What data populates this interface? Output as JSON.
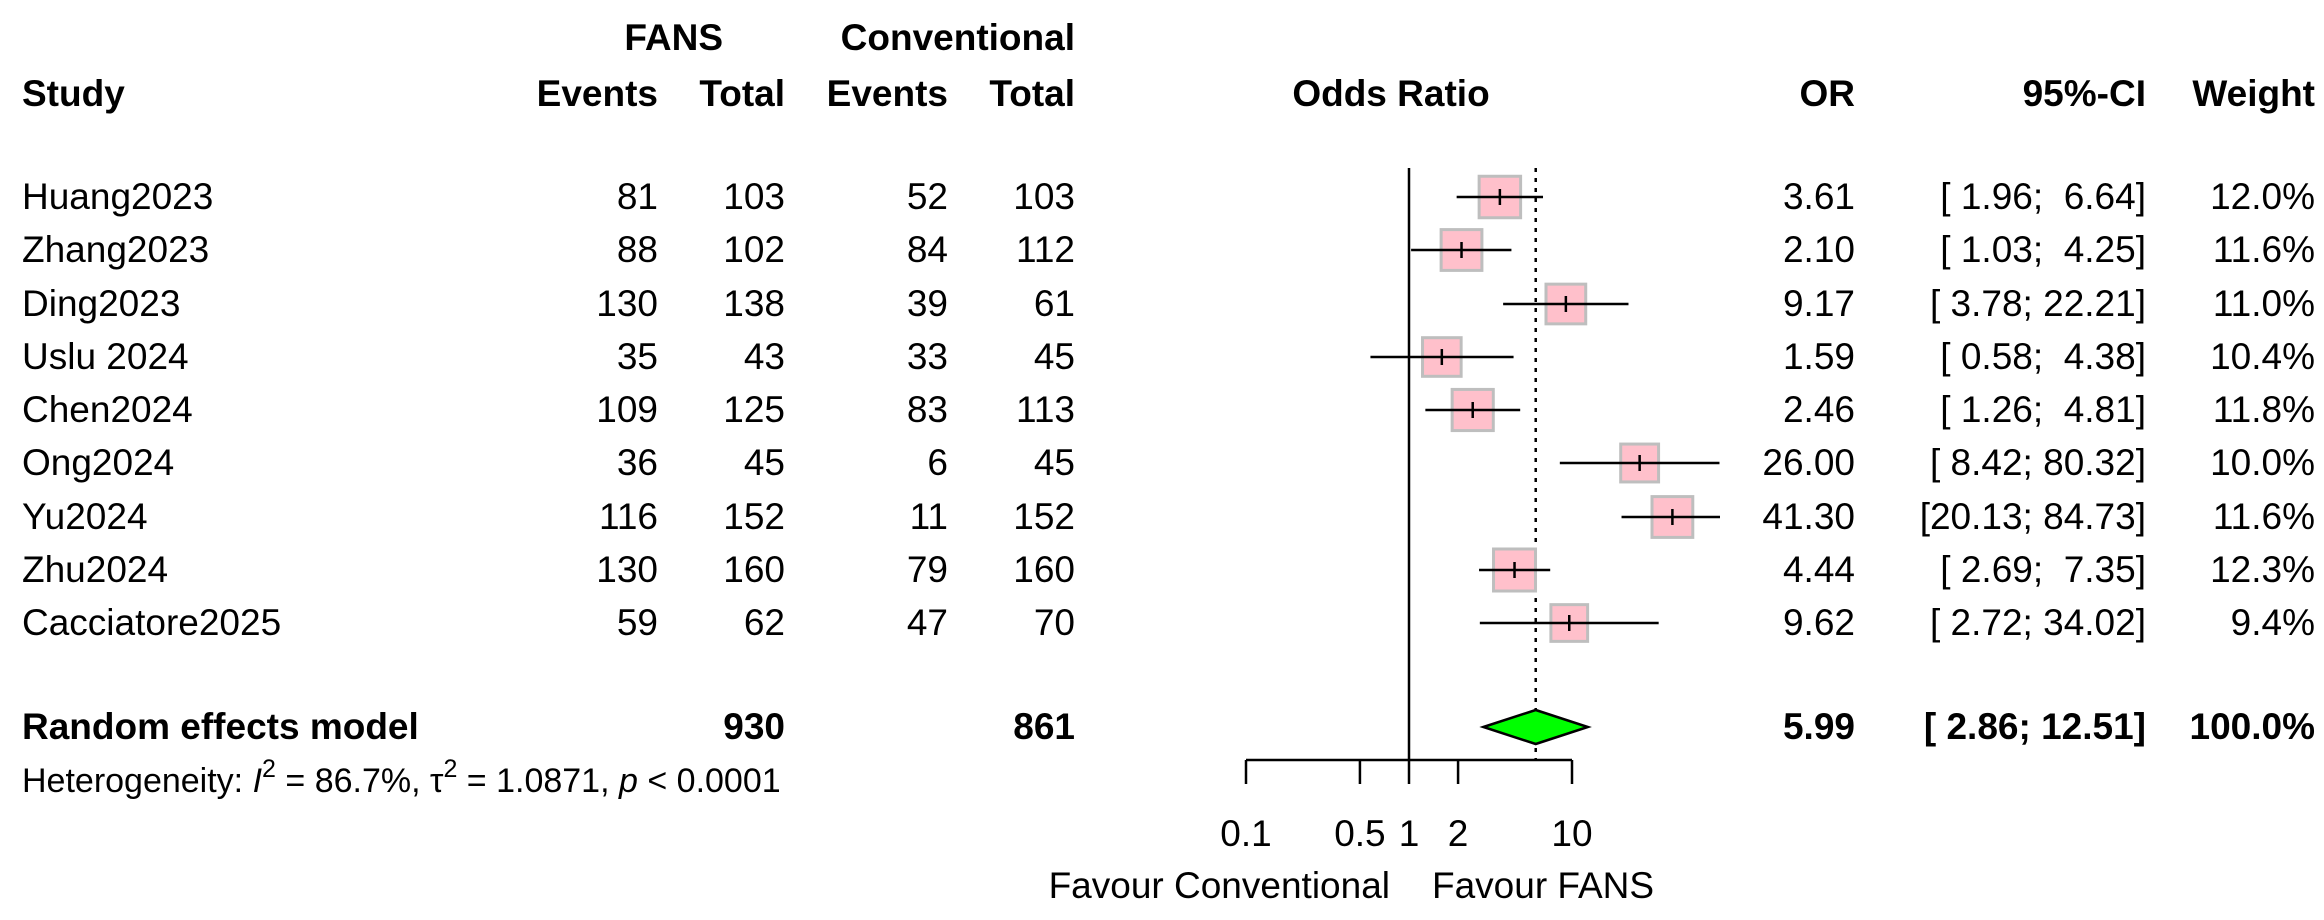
{
  "header": {
    "group_fans": "FANS",
    "group_conventional": "Conventional",
    "col_study": "Study",
    "col_events_fans": "Events",
    "col_total_fans": "Total",
    "col_events_conv": "Events",
    "col_total_conv": "Total",
    "col_odds_ratio": "Odds Ratio",
    "col_or": "OR",
    "col_ci": "95%-CI",
    "col_weight": "Weight"
  },
  "studies": [
    {
      "study": "Huang2023",
      "events_fans": "81",
      "total_fans": "103",
      "events_conv": "52",
      "total_conv": "103",
      "or_text": "3.61",
      "ci_text": "[ 1.96;  6.64]",
      "weight_text": "12.0%"
    },
    {
      "study": "Zhang2023",
      "events_fans": "88",
      "total_fans": "102",
      "events_conv": "84",
      "total_conv": "112",
      "or_text": "2.10",
      "ci_text": "[ 1.03;  4.25]",
      "weight_text": "11.6%"
    },
    {
      "study": "Ding2023",
      "events_fans": "130",
      "total_fans": "138",
      "events_conv": "39",
      "total_conv": "61",
      "or_text": "9.17",
      "ci_text": "[ 3.78; 22.21]",
      "weight_text": "11.0%"
    },
    {
      "study": "Uslu 2024",
      "events_fans": "35",
      "total_fans": "43",
      "events_conv": "33",
      "total_conv": "45",
      "or_text": "1.59",
      "ci_text": "[ 0.58;  4.38]",
      "weight_text": "10.4%"
    },
    {
      "study": "Chen2024",
      "events_fans": "109",
      "total_fans": "125",
      "events_conv": "83",
      "total_conv": "113",
      "or_text": "2.46",
      "ci_text": "[ 1.26;  4.81]",
      "weight_text": "11.8%"
    },
    {
      "study": "Ong2024",
      "events_fans": "36",
      "total_fans": "45",
      "events_conv": "6",
      "total_conv": "45",
      "or_text": "26.00",
      "ci_text": "[ 8.42; 80.32]",
      "weight_text": "10.0%"
    },
    {
      "study": "Yu2024",
      "events_fans": "116",
      "total_fans": "152",
      "events_conv": "11",
      "total_conv": "152",
      "or_text": "41.30",
      "ci_text": "[20.13; 84.73]",
      "weight_text": "11.6%"
    },
    {
      "study": "Zhu2024",
      "events_fans": "130",
      "total_fans": "160",
      "events_conv": "79",
      "total_conv": "160",
      "or_text": "4.44",
      "ci_text": "[ 2.69;  7.35]",
      "weight_text": "12.3%"
    },
    {
      "study": "Cacciatore2025",
      "events_fans": "59",
      "total_fans": "62",
      "events_conv": "47",
      "total_conv": "70",
      "or_text": "9.62",
      "ci_text": "[ 2.72; 34.02]",
      "weight_text": "9.4%"
    }
  ],
  "summary": {
    "label": "Random effects model",
    "total_fans": "930",
    "total_conv": "861",
    "or_text": "5.99",
    "ci_text": "[ 2.86; 12.51]",
    "weight_text": "100.0%"
  },
  "heterogeneity": {
    "prefix": "Heterogeneity: ",
    "i_symbol": "I",
    "i_exp": "2",
    "i_value": " = 86.7%, ",
    "tau_symbol": "τ",
    "tau_exp": "2",
    "tau_value": " = 1.0871, ",
    "p_symbol": "p",
    "p_value": " < 0.0001"
  },
  "axis": {
    "favour_left": "Favour Conventional",
    "favour_right": "Favour FANS"
  },
  "colors": {
    "study_box_fill": "#ffc0cb",
    "study_box_stroke": "#bebebe",
    "diamond_fill": "#00ff00",
    "line": "#000000"
  },
  "chart_data": {
    "type": "forest",
    "title": "",
    "xlabel": "Odds Ratio",
    "x_scale": "log",
    "xlim": [
      0.1,
      10
    ],
    "ticks": [
      0.1,
      0.5,
      1,
      2,
      10
    ],
    "tick_labels": [
      "0.1",
      "0.5",
      "1",
      "2",
      "10"
    ],
    "reference_line": 1,
    "summary_line": 5.99,
    "studies": [
      {
        "name": "Huang2023",
        "or": 3.61,
        "lower": 1.96,
        "upper": 6.64,
        "weight": 12.0
      },
      {
        "name": "Zhang2023",
        "or": 2.1,
        "lower": 1.03,
        "upper": 4.25,
        "weight": 11.6
      },
      {
        "name": "Ding2023",
        "or": 9.17,
        "lower": 3.78,
        "upper": 22.21,
        "weight": 11.0
      },
      {
        "name": "Uslu 2024",
        "or": 1.59,
        "lower": 0.58,
        "upper": 4.38,
        "weight": 10.4
      },
      {
        "name": "Chen2024",
        "or": 2.46,
        "lower": 1.26,
        "upper": 4.81,
        "weight": 11.8
      },
      {
        "name": "Ong2024",
        "or": 26.0,
        "lower": 8.42,
        "upper": 80.32,
        "weight": 10.0
      },
      {
        "name": "Yu2024",
        "or": 41.3,
        "lower": 20.13,
        "upper": 84.73,
        "weight": 11.6
      },
      {
        "name": "Zhu2024",
        "or": 4.44,
        "lower": 2.69,
        "upper": 7.35,
        "weight": 12.3
      },
      {
        "name": "Cacciatore2025",
        "or": 9.62,
        "lower": 2.72,
        "upper": 34.02,
        "weight": 9.4
      }
    ],
    "summary": {
      "name": "Random effects model",
      "or": 5.99,
      "lower": 2.86,
      "upper": 12.51,
      "weight": 100.0
    }
  }
}
